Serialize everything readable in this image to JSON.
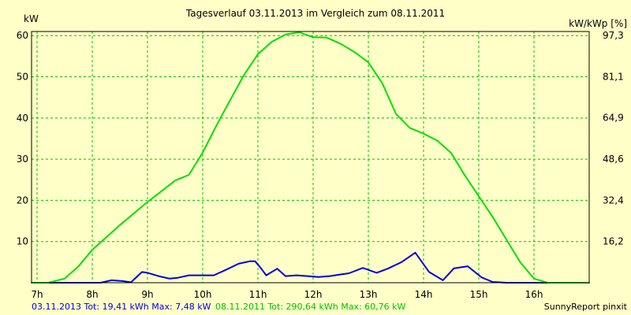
{
  "chart_data": {
    "type": "line",
    "title": "Tagesverlauf 03.11.2013 im Vergleich zum 08.11.2011",
    "ylabel": "kW",
    "y2label": "kW/kWp [%]",
    "ylim": [
      0,
      61
    ],
    "y2lim": [
      0,
      98.9
    ],
    "xlim": [
      6.9,
      17.0
    ],
    "x_ticks": [
      7,
      8,
      9,
      10,
      11,
      12,
      13,
      14,
      15,
      16
    ],
    "x_tick_labels": [
      "7h",
      "8h",
      "9h",
      "10h",
      "11h",
      "12h",
      "13h",
      "14h",
      "15h",
      "16h"
    ],
    "y_ticks": [
      10,
      20,
      30,
      40,
      50,
      60
    ],
    "y_tick_labels": [
      "10",
      "20",
      "30",
      "40",
      "50",
      "60"
    ],
    "y2_ticks": [
      16.2,
      32.4,
      48.6,
      64.9,
      81.1,
      97.3
    ],
    "y2_tick_labels": [
      "16,2",
      "32,4",
      "48,6",
      "64,9",
      "81,1",
      "97,3"
    ],
    "grid": true,
    "series": [
      {
        "name": "03.11.2013",
        "color": "#0000e0",
        "points": [
          [
            6.9,
            0
          ],
          [
            7.0,
            0
          ],
          [
            7.5,
            0
          ],
          [
            8.0,
            0
          ],
          [
            8.15,
            0
          ],
          [
            8.35,
            0.6
          ],
          [
            8.55,
            0.4
          ],
          [
            8.7,
            0.1
          ],
          [
            8.9,
            2.6
          ],
          [
            9.0,
            2.4
          ],
          [
            9.2,
            1.6
          ],
          [
            9.4,
            1.0
          ],
          [
            9.55,
            1.2
          ],
          [
            9.75,
            1.8
          ],
          [
            10.0,
            1.8
          ],
          [
            10.2,
            1.8
          ],
          [
            10.4,
            3.0
          ],
          [
            10.65,
            4.6
          ],
          [
            10.85,
            5.2
          ],
          [
            10.95,
            5.2
          ],
          [
            11.05,
            3.6
          ],
          [
            11.15,
            1.8
          ],
          [
            11.35,
            3.4
          ],
          [
            11.5,
            1.6
          ],
          [
            11.7,
            1.8
          ],
          [
            11.9,
            1.6
          ],
          [
            12.1,
            1.4
          ],
          [
            12.3,
            1.6
          ],
          [
            12.5,
            2.0
          ],
          [
            12.65,
            2.3
          ],
          [
            12.9,
            3.6
          ],
          [
            13.15,
            2.4
          ],
          [
            13.35,
            3.4
          ],
          [
            13.6,
            5.0
          ],
          [
            13.85,
            7.3
          ],
          [
            14.1,
            2.6
          ],
          [
            14.35,
            0.6
          ],
          [
            14.55,
            3.5
          ],
          [
            14.8,
            4.0
          ],
          [
            15.05,
            1.3
          ],
          [
            15.25,
            0.2
          ],
          [
            15.5,
            0
          ],
          [
            16.0,
            0
          ],
          [
            17.0,
            0
          ]
        ]
      },
      {
        "name": "08.11.2011",
        "color": "#00e000",
        "points": [
          [
            6.9,
            0
          ],
          [
            7.2,
            0
          ],
          [
            7.5,
            1.0
          ],
          [
            7.75,
            4.0
          ],
          [
            8.0,
            8.0
          ],
          [
            8.25,
            11.0
          ],
          [
            8.5,
            14.0
          ],
          [
            8.75,
            16.8
          ],
          [
            9.0,
            19.6
          ],
          [
            9.25,
            22.2
          ],
          [
            9.5,
            24.8
          ],
          [
            9.75,
            26.2
          ],
          [
            10.0,
            31.6
          ],
          [
            10.25,
            38.2
          ],
          [
            10.5,
            44.4
          ],
          [
            10.75,
            50.5
          ],
          [
            11.0,
            55.5
          ],
          [
            11.25,
            58.5
          ],
          [
            11.5,
            60.3
          ],
          [
            11.75,
            60.8
          ],
          [
            12.0,
            59.6
          ],
          [
            12.25,
            59.5
          ],
          [
            12.5,
            58.0
          ],
          [
            12.75,
            56.0
          ],
          [
            13.0,
            53.5
          ],
          [
            13.25,
            48.5
          ],
          [
            13.5,
            41.0
          ],
          [
            13.75,
            37.6
          ],
          [
            14.0,
            36.2
          ],
          [
            14.25,
            34.5
          ],
          [
            14.5,
            31.5
          ],
          [
            14.75,
            26.0
          ],
          [
            15.0,
            21.0
          ],
          [
            15.25,
            16.0
          ],
          [
            15.5,
            10.5
          ],
          [
            15.75,
            5.0
          ],
          [
            16.0,
            1.0
          ],
          [
            16.25,
            0
          ],
          [
            17.0,
            0
          ]
        ]
      }
    ]
  },
  "footer": {
    "summary_blue": "03.11.2013 Tot: 19,41 kWh Max: 7,48 kW",
    "summary_green": "08.11.2011 Tot: 290,64 kWh Max: 60,76 kW",
    "credit": "SunnyReport pinxit"
  }
}
